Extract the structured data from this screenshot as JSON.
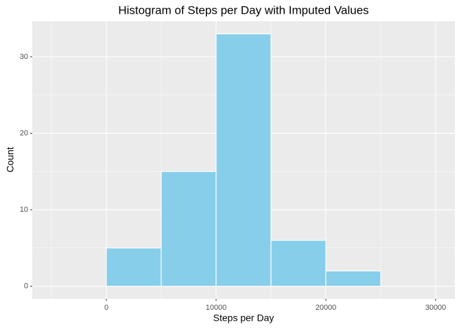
{
  "chart_data": {
    "type": "histogram",
    "title": "Histogram of Steps per Day with Imputed Values",
    "x_label": "Steps per Day",
    "y_label": "Count",
    "bins": [
      -5000,
      0,
      5000,
      10000,
      15000,
      20000,
      25000,
      30000
    ],
    "values": [
      0,
      5,
      15,
      33,
      6,
      2,
      0
    ],
    "color": "#87ceeb",
    "edge_color": "#ffffff",
    "xlim": [
      -6750,
      31750
    ],
    "ylim": [
      -1.65,
      34.65
    ],
    "xticks": [
      0,
      10000,
      20000,
      30000
    ],
    "yticks": [
      0,
      10,
      20,
      30
    ],
    "grid": true
  }
}
